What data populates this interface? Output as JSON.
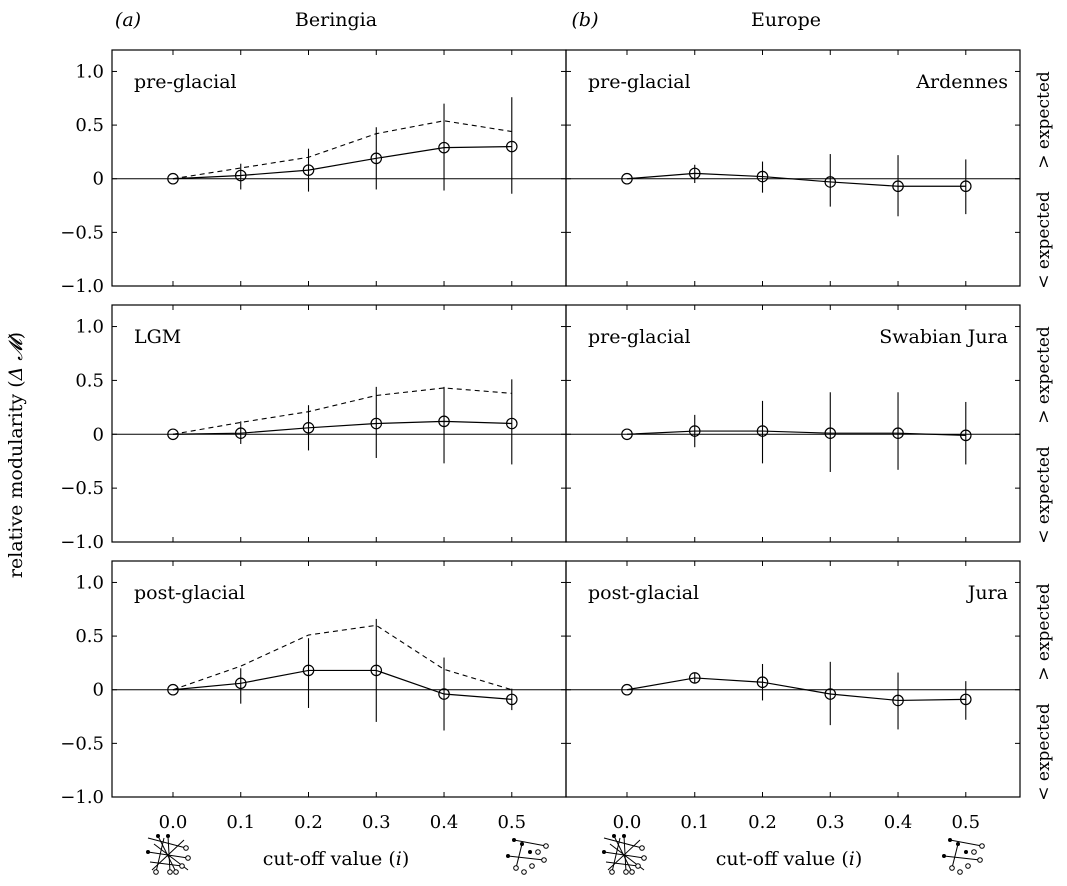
{
  "figure": {
    "columns": [
      {
        "letter": "(a)",
        "title": "Beringia"
      },
      {
        "letter": "(b)",
        "title": "Europe"
      }
    ],
    "ylabel_prefix": "relative modularity (",
    "ylabel_symbol": "Δ 𝓜",
    "ylabel_suffix": ")",
    "xlabel_prefix": "cut-off value (",
    "xlabel_var": "i",
    "xlabel_suffix": ")",
    "right_label_above": "> expected",
    "right_label_below": "< expected",
    "ytick_labels": [
      "1.0",
      "0.5",
      "0",
      "−0.5",
      "−1.0"
    ],
    "xtick_labels": [
      "0.0",
      "0.1",
      "0.2",
      "0.3",
      "0.4",
      "0.5"
    ]
  },
  "chart_data": [
    {
      "type": "line",
      "column": 0,
      "row": 0,
      "label_left": "pre-glacial",
      "label_right": "",
      "x": [
        0.0,
        0.1,
        0.2,
        0.3,
        0.4,
        0.5
      ],
      "y": [
        0.0,
        0.03,
        0.08,
        0.19,
        0.29,
        0.3
      ],
      "err_low": [
        0.0,
        -0.1,
        -0.12,
        -0.1,
        -0.11,
        -0.14
      ],
      "err_high": [
        0.0,
        0.14,
        0.28,
        0.48,
        0.7,
        0.76
      ],
      "dashed": [
        0.0,
        0.1,
        0.2,
        0.42,
        0.54,
        0.44
      ],
      "ylim": [
        -1.0,
        1.2
      ]
    },
    {
      "type": "line",
      "column": 1,
      "row": 0,
      "label_left": "pre-glacial",
      "label_right": "Ardennes",
      "x": [
        0.0,
        0.1,
        0.2,
        0.3,
        0.4,
        0.5
      ],
      "y": [
        0.0,
        0.05,
        0.02,
        -0.03,
        -0.07,
        -0.07
      ],
      "err_low": [
        0.0,
        -0.04,
        -0.13,
        -0.26,
        -0.35,
        -0.33
      ],
      "err_high": [
        0.0,
        0.13,
        0.16,
        0.23,
        0.22,
        0.18
      ],
      "dashed": null,
      "ylim": [
        -1.0,
        1.2
      ]
    },
    {
      "type": "line",
      "column": 0,
      "row": 1,
      "label_left": "LGM",
      "label_right": "",
      "x": [
        0.0,
        0.1,
        0.2,
        0.3,
        0.4,
        0.5
      ],
      "y": [
        0.0,
        0.01,
        0.06,
        0.1,
        0.12,
        0.1
      ],
      "err_low": [
        0.0,
        -0.09,
        -0.15,
        -0.22,
        -0.27,
        -0.28
      ],
      "err_high": [
        0.0,
        0.12,
        0.27,
        0.44,
        0.44,
        0.51
      ],
      "dashed": [
        0.0,
        0.11,
        0.21,
        0.36,
        0.43,
        0.38
      ],
      "ylim": [
        -1.0,
        1.2
      ]
    },
    {
      "type": "line",
      "column": 1,
      "row": 1,
      "label_left": "pre-glacial",
      "label_right": "Swabian Jura",
      "x": [
        0.0,
        0.1,
        0.2,
        0.3,
        0.4,
        0.5
      ],
      "y": [
        0.0,
        0.03,
        0.03,
        0.01,
        0.01,
        -0.01
      ],
      "err_low": [
        0.0,
        -0.12,
        -0.27,
        -0.35,
        -0.33,
        -0.28
      ],
      "err_high": [
        0.0,
        0.18,
        0.31,
        0.39,
        0.39,
        0.3
      ],
      "dashed": null,
      "ylim": [
        -1.0,
        1.2
      ]
    },
    {
      "type": "line",
      "column": 0,
      "row": 2,
      "label_left": "post-glacial",
      "label_right": "",
      "x": [
        0.0,
        0.1,
        0.2,
        0.3,
        0.4,
        0.5
      ],
      "y": [
        0.0,
        0.06,
        0.18,
        0.18,
        -0.04,
        -0.09
      ],
      "err_low": [
        0.0,
        -0.13,
        -0.17,
        -0.3,
        -0.38,
        -0.19
      ],
      "err_high": [
        0.0,
        0.2,
        0.48,
        0.66,
        0.3,
        0.01
      ],
      "dashed": [
        0.0,
        0.22,
        0.51,
        0.6,
        0.19,
        0.0
      ],
      "ylim": [
        -1.0,
        1.2
      ]
    },
    {
      "type": "line",
      "column": 1,
      "row": 2,
      "label_left": "post-glacial",
      "label_right": "Jura",
      "x": [
        0.0,
        0.1,
        0.2,
        0.3,
        0.4,
        0.5
      ],
      "y": [
        0.0,
        0.11,
        0.07,
        -0.04,
        -0.1,
        -0.09
      ],
      "err_low": [
        0.0,
        0.06,
        -0.1,
        -0.33,
        -0.37,
        -0.28
      ],
      "err_high": [
        0.0,
        0.16,
        0.24,
        0.26,
        0.16,
        0.08
      ],
      "dashed": null,
      "ylim": [
        -1.0,
        1.2
      ]
    }
  ]
}
